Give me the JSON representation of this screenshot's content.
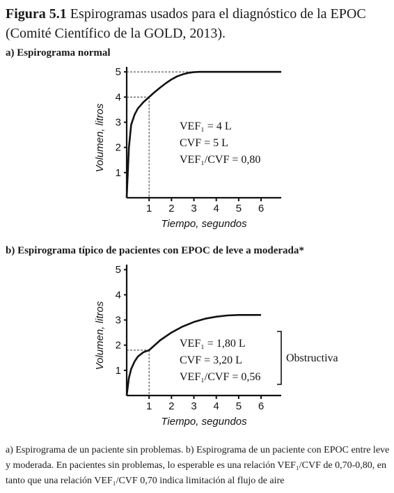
{
  "figure": {
    "label": "Figura 5.1",
    "title": "Espirogramas usados para el diagnóstico de la EPOC (Comité Científico de la GOLD, 2013)."
  },
  "panels": [
    {
      "label": "a) Espirograma normal",
      "annotations": [
        "VEF₁ = 4 L",
        "CVF = 5 L",
        "VEF₁/CVF = 0,80"
      ],
      "bracket_label": ""
    },
    {
      "label": "b) Espirograma típico de pacientes con EPOC de leve a moderada*",
      "annotations": [
        "VEF₁ = 1,80 L",
        "CVF = 3,20 L",
        "VEF₁/CVF = 0,56"
      ],
      "bracket_label": "Obstructiva"
    }
  ],
  "footnote": "a) Espirograma de un paciente sin problemas. b) Espirograma de un paciente con EPOC entre leve y moderada. En pacientes sin problemas, lo esperable es una relación VEF₁/CVF de 0,70-0,80, en tanto que una relación VEF₁/CVF  0,70 indica limitación al flujo de aire",
  "chart_data": [
    {
      "type": "line",
      "xlabel": "Tiempo, segundos",
      "ylabel": "Volumen, litros",
      "x_ticks": [
        1,
        2,
        3,
        4,
        5,
        6
      ],
      "y_ticks": [
        1,
        2,
        3,
        4,
        5
      ],
      "xlim": [
        0,
        6.9
      ],
      "ylim": [
        0,
        5.2
      ],
      "series": [
        {
          "x": [
            0,
            0.1,
            0.2,
            0.35,
            0.5,
            0.75,
            1.0,
            1.25,
            1.5,
            1.75,
            2.0,
            2.25,
            2.5,
            2.75,
            3.0,
            3.25,
            3.5,
            4.0,
            5.0,
            6.0,
            6.9
          ],
          "values": [
            0.0,
            2.0,
            2.9,
            3.3,
            3.55,
            3.8,
            4.0,
            4.2,
            4.38,
            4.55,
            4.7,
            4.82,
            4.9,
            4.96,
            4.99,
            5.0,
            5.0,
            5.0,
            5.0,
            5.0,
            5.0
          ]
        }
      ],
      "reference_lines": {
        "fev1": [
          1,
          4
        ],
        "fvc": [
          3.25,
          5
        ]
      }
    },
    {
      "type": "line",
      "xlabel": "Tiempo, segundos",
      "ylabel": "Volumen, litros",
      "x_ticks": [
        1,
        2,
        3,
        4,
        5,
        6
      ],
      "y_ticks": [
        1,
        2,
        3,
        4,
        5
      ],
      "xlim": [
        0,
        6.9
      ],
      "ylim": [
        0,
        5.2
      ],
      "series": [
        {
          "x": [
            0,
            0.1,
            0.2,
            0.35,
            0.5,
            0.75,
            1.0,
            1.5,
            2.0,
            2.5,
            3.0,
            3.5,
            4.0,
            4.5,
            5.0,
            5.5,
            6.0
          ],
          "values": [
            0.0,
            0.7,
            1.05,
            1.35,
            1.55,
            1.72,
            1.8,
            2.2,
            2.5,
            2.74,
            2.92,
            3.05,
            3.13,
            3.18,
            3.2,
            3.2,
            3.2
          ]
        }
      ],
      "reference_lines": {
        "fev1": [
          1,
          1.8
        ],
        "fvc": [
          0,
          3.2
        ]
      }
    }
  ]
}
